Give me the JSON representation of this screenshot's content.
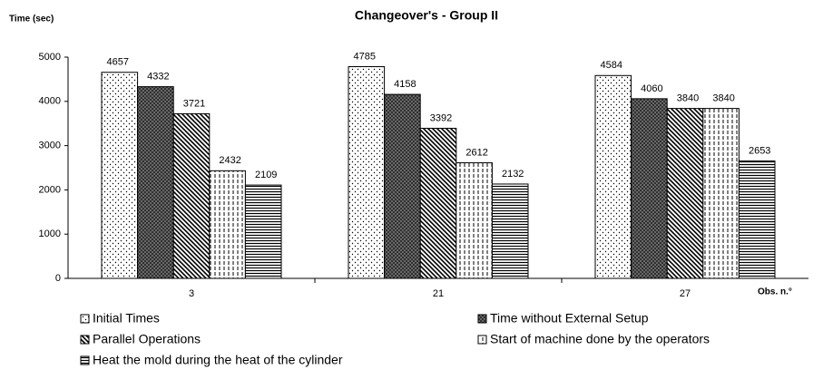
{
  "chart_data": {
    "type": "bar",
    "title": "Changeover's - Group II",
    "y_label": "Time (sec)",
    "x_label": "Obs. n.°",
    "categories": [
      "3",
      "21",
      "27"
    ],
    "series": [
      {
        "name": "Initial Times",
        "pattern": "dots",
        "values": [
          4657,
          4785,
          4584
        ]
      },
      {
        "name": "Time without External Setup",
        "pattern": "crosshatch",
        "values": [
          4332,
          4158,
          4060
        ]
      },
      {
        "name": "Parallel Operations",
        "pattern": "diagonal",
        "values": [
          3721,
          3392,
          3840
        ]
      },
      {
        "name": "Start of machine done by the operators",
        "pattern": "vdash",
        "values": [
          2432,
          2612,
          3840
        ]
      },
      {
        "name": "Heat the mold during the heat of the cylinder",
        "pattern": "hlines",
        "values": [
          2109,
          2132,
          2653
        ]
      }
    ],
    "ylim": [
      0,
      5000
    ],
    "yticks": [
      0,
      1000,
      2000,
      3000,
      4000,
      5000
    ],
    "grid": false
  }
}
